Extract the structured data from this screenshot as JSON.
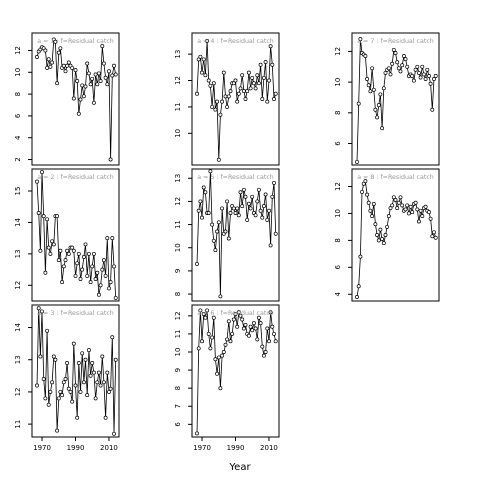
{
  "figure": {
    "xlabel": "Year",
    "x_ticks": [
      1970,
      1990,
      2010
    ],
    "xlim": [
      1964,
      2016
    ]
  },
  "chart_data": [
    {
      "type": "line",
      "label": "a = 1 :  f=Residual catch",
      "ylim": [
        1.5,
        13.6
      ],
      "y_ticks": [
        2,
        4,
        6,
        8,
        10,
        12
      ],
      "x": [
        1967,
        1968,
        1969,
        1970,
        1971,
        1972,
        1973,
        1974,
        1975,
        1976,
        1977,
        1978,
        1979,
        1980,
        1981,
        1982,
        1983,
        1984,
        1985,
        1986,
        1987,
        1988,
        1989,
        1990,
        1991,
        1992,
        1993,
        1994,
        1995,
        1996,
        1997,
        1998,
        1999,
        2000,
        2001,
        2002,
        2003,
        2004,
        2005,
        2006,
        2007,
        2008,
        2009,
        2010,
        2011,
        2012,
        2013,
        2014
      ],
      "values": [
        11.4,
        11.9,
        12.1,
        12.3,
        12.2,
        12.0,
        10.4,
        11.2,
        10.5,
        10.9,
        13.0,
        12.8,
        9.0,
        11.8,
        12.2,
        10.4,
        10.6,
        10.1,
        10.6,
        10.9,
        10.6,
        10.4,
        7.6,
        10.2,
        9.2,
        6.2,
        7.5,
        8.8,
        7.8,
        8.7,
        10.8,
        9.9,
        8.9,
        9.4,
        7.2,
        9.8,
        8.9,
        9.9,
        9.2,
        12.4,
        10.8,
        9.5,
        8.9,
        10.1,
        2.0,
        9.7,
        10.6,
        9.8
      ]
    },
    {
      "type": "line",
      "label": "a = 4 :  f=Residual catch",
      "ylim": [
        8.8,
        13.8
      ],
      "y_ticks": [
        10,
        11,
        12,
        13
      ],
      "x": [
        1967,
        1968,
        1969,
        1970,
        1971,
        1972,
        1973,
        1974,
        1975,
        1976,
        1977,
        1978,
        1979,
        1980,
        1981,
        1982,
        1983,
        1984,
        1985,
        1986,
        1987,
        1988,
        1989,
        1990,
        1991,
        1992,
        1993,
        1994,
        1995,
        1996,
        1997,
        1998,
        1999,
        2000,
        2001,
        2002,
        2003,
        2004,
        2005,
        2006,
        2007,
        2008,
        2009,
        2010,
        2011,
        2012,
        2013,
        2014
      ],
      "values": [
        11.5,
        12.8,
        12.9,
        12.3,
        12.8,
        12.2,
        13.5,
        12.0,
        11.8,
        11.0,
        11.9,
        10.9,
        11.2,
        9.0,
        10.7,
        11.2,
        12.3,
        11.4,
        11.0,
        11.4,
        11.6,
        11.9,
        11.9,
        12.0,
        11.2,
        11.5,
        11.7,
        12.2,
        11.6,
        11.3,
        11.6,
        12.3,
        11.7,
        12.1,
        11.9,
        11.7,
        12.2,
        11.9,
        12.6,
        11.3,
        12.1,
        12.7,
        11.2,
        12.0,
        13.3,
        12.6,
        11.3,
        11.5
      ]
    },
    {
      "type": "line",
      "label": "a = 7 :  f=Residual catch",
      "ylim": [
        4.6,
        13.2
      ],
      "y_ticks": [
        6,
        8,
        10,
        12
      ],
      "x": [
        1967,
        1968,
        1969,
        1970,
        1971,
        1972,
        1973,
        1974,
        1975,
        1976,
        1977,
        1978,
        1979,
        1980,
        1981,
        1982,
        1983,
        1984,
        1985,
        1986,
        1987,
        1988,
        1989,
        1990,
        1991,
        1992,
        1993,
        1994,
        1995,
        1996,
        1997,
        1998,
        1999,
        2000,
        2001,
        2002,
        2003,
        2004,
        2005,
        2006,
        2007,
        2008,
        2009,
        2010,
        2011,
        2012,
        2013,
        2014
      ],
      "values": [
        4.8,
        8.6,
        12.8,
        11.9,
        11.8,
        11.7,
        10.2,
        9.8,
        9.4,
        10.9,
        9.5,
        8.2,
        7.7,
        8.5,
        9.2,
        7.0,
        9.6,
        10.6,
        10.8,
        10.9,
        10.5,
        11.2,
        12.1,
        11.9,
        11.3,
        10.9,
        10.7,
        11.1,
        11.7,
        11.5,
        11.0,
        10.4,
        10.5,
        10.4,
        10.1,
        10.8,
        11.0,
        10.6,
        10.3,
        11.0,
        10.5,
        10.2,
        10.8,
        10.4,
        9.9,
        8.2,
        10.2,
        10.4
      ]
    },
    {
      "type": "line",
      "label": "a = 2 :  f=Residual catch",
      "ylim": [
        11.5,
        15.7
      ],
      "y_ticks": [
        12,
        13,
        14,
        15
      ],
      "x": [
        1967,
        1968,
        1969,
        1970,
        1971,
        1972,
        1973,
        1974,
        1975,
        1976,
        1977,
        1978,
        1979,
        1980,
        1981,
        1982,
        1983,
        1984,
        1985,
        1986,
        1987,
        1988,
        1989,
        1990,
        1991,
        1992,
        1993,
        1994,
        1995,
        1996,
        1997,
        1998,
        1999,
        2000,
        2001,
        2002,
        2003,
        2004,
        2005,
        2006,
        2007,
        2008,
        2009,
        2010,
        2011,
        2012,
        2013,
        2014
      ],
      "values": [
        15.3,
        14.3,
        13.1,
        15.6,
        14.2,
        12.4,
        14.1,
        13.2,
        13.0,
        13.4,
        13.3,
        14.2,
        14.2,
        12.8,
        13.1,
        12.1,
        12.6,
        12.8,
        13.1,
        13.0,
        13.2,
        13.2,
        13.1,
        12.3,
        12.7,
        13.0,
        12.2,
        12.5,
        12.9,
        13.3,
        12.3,
        13.0,
        12.1,
        12.6,
        13.0,
        12.2,
        12.4,
        11.7,
        12.0,
        12.5,
        12.8,
        12.3,
        13.5,
        11.9,
        12.1,
        13.5,
        12.6,
        11.6
      ]
    },
    {
      "type": "line",
      "label": "a = 5 :  f=Residual catch",
      "ylim": [
        7.7,
        13.4
      ],
      "y_ticks": [
        8,
        9,
        10,
        11,
        12,
        13
      ],
      "x": [
        1967,
        1968,
        1969,
        1970,
        1971,
        1972,
        1973,
        1974,
        1975,
        1976,
        1977,
        1978,
        1979,
        1980,
        1981,
        1982,
        1983,
        1984,
        1985,
        1986,
        1987,
        1988,
        1989,
        1990,
        1991,
        1992,
        1993,
        1994,
        1995,
        1996,
        1997,
        1998,
        1999,
        2000,
        2001,
        2002,
        2003,
        2004,
        2005,
        2006,
        2007,
        2008,
        2009,
        2010,
        2011,
        2012,
        2013,
        2014
      ],
      "values": [
        9.3,
        11.6,
        12.0,
        11.3,
        12.6,
        12.4,
        11.5,
        11.5,
        13.3,
        11.0,
        10.3,
        9.9,
        10.7,
        11.1,
        7.9,
        11.7,
        10.6,
        10.7,
        12.0,
        10.4,
        11.5,
        11.8,
        11.7,
        11.5,
        11.7,
        11.4,
        12.4,
        11.8,
        12.5,
        12.2,
        11.2,
        11.9,
        11.7,
        12.2,
        11.5,
        11.4,
        12.0,
        12.5,
        11.6,
        11.3,
        11.8,
        12.3,
        11.2,
        11.6,
        10.1,
        12.2,
        12.8,
        10.6
      ]
    },
    {
      "type": "line",
      "label": "a = 8 :  f=Residual catch",
      "ylim": [
        3.5,
        13.3
      ],
      "y_ticks": [
        4,
        6,
        8,
        10,
        12
      ],
      "x": [
        1967,
        1968,
        1969,
        1970,
        1971,
        1972,
        1973,
        1974,
        1975,
        1976,
        1977,
        1978,
        1979,
        1980,
        1981,
        1982,
        1983,
        1984,
        1985,
        1986,
        1987,
        1988,
        1989,
        1990,
        1991,
        1992,
        1993,
        1994,
        1995,
        1996,
        1997,
        1998,
        1999,
        2000,
        2001,
        2002,
        2003,
        2004,
        2005,
        2006,
        2007,
        2008,
        2009,
        2010,
        2011,
        2012,
        2013,
        2014
      ],
      "values": [
        3.8,
        4.6,
        6.8,
        11.6,
        12.2,
        12.4,
        11.4,
        10.8,
        10.2,
        9.8,
        10.7,
        9.2,
        8.4,
        8.0,
        8.8,
        8.1,
        7.8,
        8.4,
        9.0,
        9.8,
        10.4,
        10.6,
        11.2,
        11.0,
        10.4,
        10.8,
        11.2,
        10.6,
        10.2,
        10.3,
        10.6,
        10.0,
        10.5,
        10.1,
        10.7,
        10.8,
        10.3,
        9.4,
        10.2,
        9.8,
        10.4,
        10.5,
        10.2,
        10.1,
        9.6,
        8.3,
        8.6,
        8.2
      ]
    },
    {
      "type": "line",
      "label": "a = 3 :  f=Residual catch",
      "ylim": [
        10.6,
        14.7
      ],
      "y_ticks": [
        11,
        12,
        13,
        14
      ],
      "x": [
        1967,
        1968,
        1969,
        1970,
        1971,
        1972,
        1973,
        1974,
        1975,
        1976,
        1977,
        1978,
        1979,
        1980,
        1981,
        1982,
        1983,
        1984,
        1985,
        1986,
        1987,
        1988,
        1989,
        1990,
        1991,
        1992,
        1993,
        1994,
        1995,
        1996,
        1997,
        1998,
        1999,
        2000,
        2001,
        2002,
        2003,
        2004,
        2005,
        2006,
        2007,
        2008,
        2009,
        2010,
        2011,
        2012,
        2013,
        2014
      ],
      "values": [
        12.2,
        14.6,
        13.1,
        14.5,
        12.4,
        11.8,
        13.9,
        11.6,
        12.0,
        12.3,
        13.1,
        13.0,
        10.8,
        11.8,
        12.0,
        11.9,
        12.3,
        12.4,
        12.9,
        12.1,
        12.0,
        11.7,
        13.5,
        12.2,
        11.2,
        12.9,
        12.0,
        13.2,
        12.3,
        13.0,
        11.9,
        13.3,
        12.5,
        12.9,
        12.6,
        11.8,
        12.3,
        12.6,
        12.2,
        13.1,
        12.3,
        11.2,
        12.6,
        12.0,
        12.1,
        13.7,
        10.7,
        13.0
      ]
    },
    {
      "type": "line",
      "label": "a = 6 :  f=Residual catch",
      "ylim": [
        5.3,
        12.6
      ],
      "y_ticks": [
        6,
        7,
        8,
        9,
        10,
        11,
        12
      ],
      "x": [
        1967,
        1968,
        1969,
        1970,
        1971,
        1972,
        1973,
        1974,
        1975,
        1976,
        1977,
        1978,
        1979,
        1980,
        1981,
        1982,
        1983,
        1984,
        1985,
        1986,
        1987,
        1988,
        1989,
        1990,
        1991,
        1992,
        1993,
        1994,
        1995,
        1996,
        1997,
        1998,
        1999,
        2000,
        2001,
        2002,
        2003,
        2004,
        2005,
        2006,
        2007,
        2008,
        2009,
        2010,
        2011,
        2012,
        2013,
        2014
      ],
      "values": [
        5.5,
        10.2,
        12.3,
        10.6,
        12.1,
        11.9,
        12.3,
        11.0,
        10.2,
        10.8,
        11.9,
        9.6,
        8.8,
        9.7,
        8.0,
        9.8,
        10.0,
        10.4,
        10.7,
        11.7,
        10.6,
        11.0,
        11.8,
        12.1,
        11.4,
        12.2,
        12.0,
        11.8,
        11.3,
        11.5,
        11.0,
        10.9,
        11.4,
        11.2,
        11.6,
        11.3,
        10.7,
        11.9,
        11.6,
        10.3,
        9.8,
        10.0,
        11.3,
        10.6,
        12.2,
        11.4,
        11.0,
        10.6
      ]
    }
  ]
}
